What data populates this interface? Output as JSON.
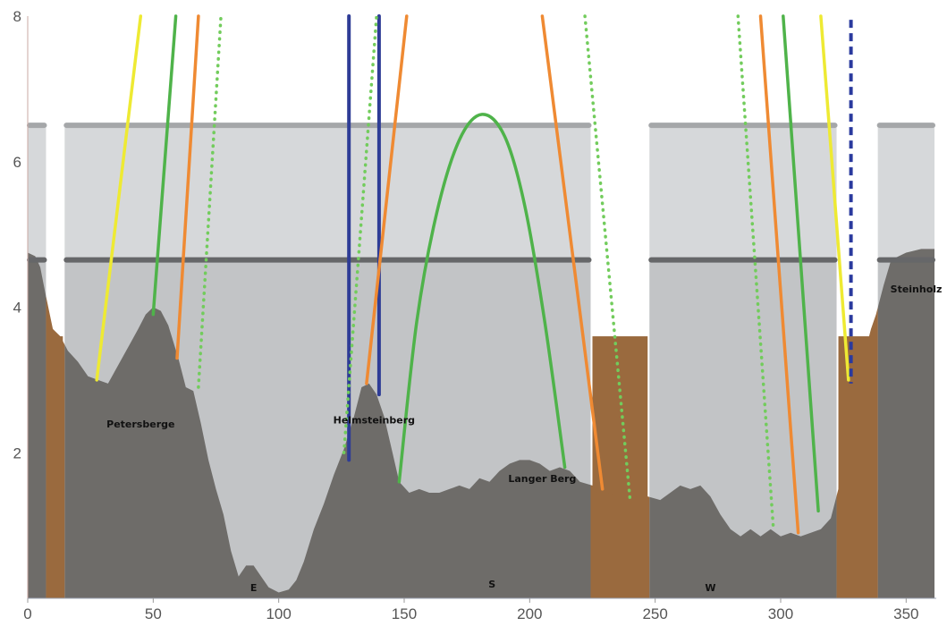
{
  "chart_data": {
    "type": "area",
    "title": "",
    "xlabel": "",
    "ylabel": "",
    "xlim": [
      0,
      362
    ],
    "ylim": [
      0,
      8
    ],
    "x_ticks": [
      0,
      50,
      100,
      150,
      200,
      250,
      300,
      350
    ],
    "y_ticks": [
      2,
      4,
      6,
      8
    ],
    "colors": {
      "terrain": "#6b6966",
      "brown_zone": "#9a6a3e",
      "light_band": "#d6d8da",
      "light_band_edge": "#a5a7a9",
      "dark_band_edge": "#666769",
      "yellow": "#eeea33",
      "green": "#4fb34a",
      "orange": "#ef8a33",
      "blue": "#2e3c96",
      "dotted_green": "#72cc5c",
      "dashed_blue": "#2a3a9e"
    },
    "bands": {
      "upper_level": 6.5,
      "lower_level": 4.65,
      "gaps": [
        [
          8,
          14
        ],
        [
          225,
          247
        ],
        [
          323,
          338
        ]
      ],
      "segments": [
        [
          0,
          8
        ],
        [
          14,
          225
        ],
        [
          247,
          323
        ],
        [
          338,
          362
        ]
      ]
    },
    "brown_zones": [
      [
        8,
        14
      ],
      [
        225,
        247
      ],
      [
        323,
        338
      ]
    ],
    "terrain": [
      [
        0,
        4.75
      ],
      [
        3,
        4.7
      ],
      [
        5,
        4.55
      ],
      [
        7,
        4.2
      ],
      [
        10,
        3.7
      ],
      [
        13,
        3.6
      ],
      [
        16,
        3.4
      ],
      [
        20,
        3.25
      ],
      [
        24,
        3.05
      ],
      [
        28,
        3.0
      ],
      [
        32,
        2.95
      ],
      [
        36,
        3.2
      ],
      [
        40,
        3.45
      ],
      [
        44,
        3.7
      ],
      [
        47,
        3.9
      ],
      [
        50,
        4.0
      ],
      [
        53,
        3.95
      ],
      [
        56,
        3.75
      ],
      [
        60,
        3.3
      ],
      [
        63,
        2.9
      ],
      [
        66,
        2.85
      ],
      [
        69,
        2.4
      ],
      [
        72,
        1.9
      ],
      [
        75,
        1.5
      ],
      [
        78,
        1.15
      ],
      [
        81,
        0.65
      ],
      [
        84,
        0.3
      ],
      [
        87,
        0.45
      ],
      [
        90,
        0.45
      ],
      [
        93,
        0.3
      ],
      [
        96,
        0.15
      ],
      [
        100,
        0.08
      ],
      [
        104,
        0.12
      ],
      [
        107,
        0.25
      ],
      [
        110,
        0.5
      ],
      [
        114,
        0.95
      ],
      [
        118,
        1.3
      ],
      [
        122,
        1.7
      ],
      [
        126,
        2.05
      ],
      [
        130,
        2.5
      ],
      [
        133,
        2.9
      ],
      [
        136,
        2.95
      ],
      [
        139,
        2.8
      ],
      [
        142,
        2.5
      ],
      [
        145,
        2.05
      ],
      [
        148,
        1.6
      ],
      [
        152,
        1.45
      ],
      [
        156,
        1.5
      ],
      [
        160,
        1.45
      ],
      [
        164,
        1.45
      ],
      [
        168,
        1.5
      ],
      [
        172,
        1.55
      ],
      [
        176,
        1.5
      ],
      [
        180,
        1.65
      ],
      [
        184,
        1.6
      ],
      [
        188,
        1.75
      ],
      [
        192,
        1.85
      ],
      [
        196,
        1.9
      ],
      [
        200,
        1.9
      ],
      [
        204,
        1.85
      ],
      [
        208,
        1.75
      ],
      [
        212,
        1.8
      ],
      [
        216,
        1.75
      ],
      [
        220,
        1.6
      ],
      [
        225,
        1.55
      ],
      [
        228,
        1.4
      ],
      [
        232,
        1.45
      ],
      [
        236,
        1.35
      ],
      [
        240,
        1.3
      ],
      [
        244,
        1.45
      ],
      [
        247,
        1.4
      ],
      [
        252,
        1.35
      ],
      [
        256,
        1.45
      ],
      [
        260,
        1.55
      ],
      [
        264,
        1.5
      ],
      [
        268,
        1.55
      ],
      [
        272,
        1.4
      ],
      [
        276,
        1.15
      ],
      [
        280,
        0.95
      ],
      [
        284,
        0.85
      ],
      [
        288,
        0.95
      ],
      [
        292,
        0.85
      ],
      [
        296,
        0.95
      ],
      [
        300,
        0.85
      ],
      [
        304,
        0.9
      ],
      [
        308,
        0.85
      ],
      [
        312,
        0.9
      ],
      [
        316,
        0.95
      ],
      [
        320,
        1.1
      ],
      [
        323,
        1.5
      ],
      [
        326,
        2.6
      ],
      [
        330,
        2.9
      ],
      [
        333,
        3.3
      ],
      [
        336,
        3.7
      ],
      [
        338,
        3.9
      ],
      [
        341,
        4.3
      ],
      [
        344,
        4.65
      ],
      [
        350,
        4.75
      ],
      [
        356,
        4.8
      ],
      [
        362,
        4.8
      ]
    ],
    "series": [
      {
        "color": "yellow",
        "style": "solid",
        "points": [
          [
            27.5,
            3.0
          ],
          [
            45,
            8.0
          ]
        ]
      },
      {
        "color": "green",
        "style": "solid",
        "points": [
          [
            50,
            3.9
          ],
          [
            59,
            8.0
          ]
        ]
      },
      {
        "color": "orange",
        "style": "solid",
        "points": [
          [
            59.5,
            3.3
          ],
          [
            68,
            8.0
          ]
        ]
      },
      {
        "color": "dotted_green",
        "style": "dotted",
        "points": [
          [
            68,
            2.9
          ],
          [
            77,
            8.0
          ]
        ]
      },
      {
        "color": "blue",
        "style": "solid",
        "points": [
          [
            128,
            1.9
          ],
          [
            128,
            8.0
          ]
        ]
      },
      {
        "color": "blue",
        "style": "solid",
        "points": [
          [
            140,
            2.8
          ],
          [
            140,
            8.0
          ]
        ]
      },
      {
        "color": "dotted_green",
        "style": "dotted",
        "points": [
          [
            126,
            2.0
          ],
          [
            139,
            8.0
          ]
        ]
      },
      {
        "color": "orange",
        "style": "solid",
        "points": [
          [
            135,
            2.95
          ],
          [
            151,
            8.0
          ]
        ]
      },
      {
        "color": "green",
        "style": "curve",
        "points": [
          [
            148,
            1.6
          ],
          [
            155,
            3.8
          ],
          [
            163,
            5.3
          ],
          [
            172,
            6.3
          ],
          [
            181,
            6.65
          ],
          [
            190,
            6.35
          ],
          [
            198,
            5.4
          ],
          [
            206,
            3.8
          ],
          [
            214,
            1.8
          ]
        ]
      },
      {
        "color": "orange",
        "style": "solid",
        "points": [
          [
            205,
            8.0
          ],
          [
            229,
            1.5
          ]
        ]
      },
      {
        "color": "dotted_green",
        "style": "dotted",
        "points": [
          [
            222,
            8.0
          ],
          [
            240,
            1.35
          ]
        ]
      },
      {
        "color": "dotted_green",
        "style": "dotted",
        "points": [
          [
            283,
            8.0
          ],
          [
            297,
            1.0
          ]
        ]
      },
      {
        "color": "orange",
        "style": "solid",
        "points": [
          [
            292,
            8.0
          ],
          [
            307,
            0.9
          ]
        ]
      },
      {
        "color": "green",
        "style": "solid",
        "points": [
          [
            301,
            8.0
          ],
          [
            315,
            1.2
          ]
        ]
      },
      {
        "color": "yellow",
        "style": "solid",
        "points": [
          [
            316,
            8.0
          ],
          [
            327,
            3.0
          ]
        ]
      },
      {
        "color": "dashed_blue",
        "style": "dashed",
        "points": [
          [
            328,
            7.95
          ],
          [
            328,
            2.95
          ]
        ]
      }
    ],
    "annotations": [
      {
        "text": "Petersberge",
        "x": 45,
        "y": 2.35
      },
      {
        "text": "Helmsteinberg",
        "x": 138,
        "y": 2.4
      },
      {
        "text": "Langer Berg",
        "x": 205,
        "y": 1.6
      },
      {
        "text": "Steinholz",
        "x": 354,
        "y": 4.2
      },
      {
        "text": "E",
        "x": 90,
        "y": 0.1
      },
      {
        "text": "S",
        "x": 185,
        "y": 0.15
      },
      {
        "text": "W",
        "x": 272,
        "y": 0.1
      }
    ]
  }
}
